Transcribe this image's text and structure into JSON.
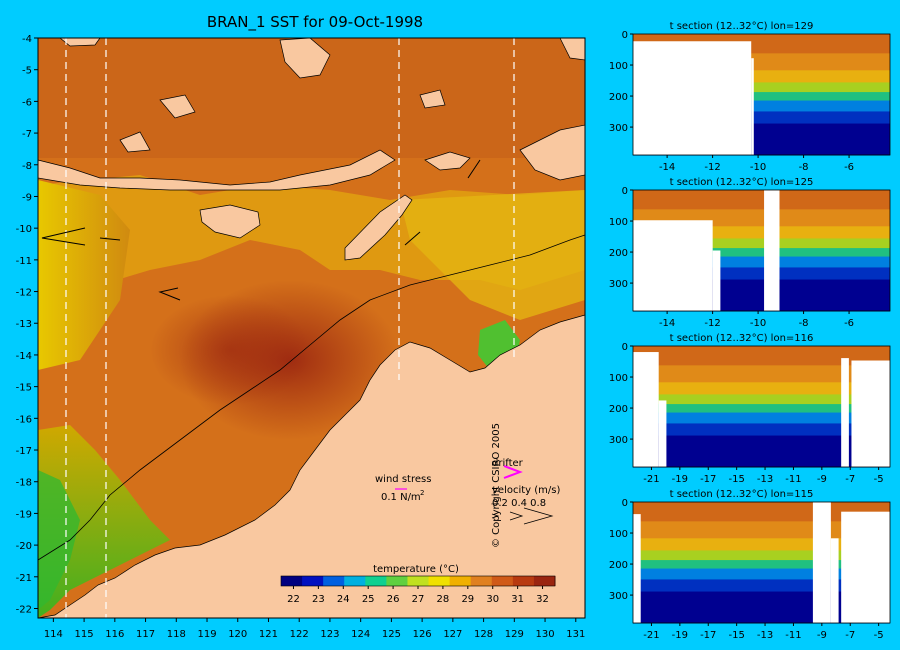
{
  "main_map": {
    "title": "BRAN_1 SST for 09-Oct-1998",
    "lat_ticks": [
      "-4",
      "-5",
      "-6",
      "-7",
      "-8",
      "-9",
      "-10",
      "-11",
      "-12",
      "-13",
      "-14",
      "-15",
      "-16",
      "-17",
      "-18",
      "-19",
      "-20",
      "-21",
      "-22"
    ],
    "lon_ticks": [
      "114",
      "115",
      "116",
      "117",
      "118",
      "119",
      "120",
      "121",
      "122",
      "123",
      "124",
      "125",
      "126",
      "127",
      "128",
      "129",
      "130",
      "131"
    ],
    "wind_stress_label": "wind stress",
    "wind_stress_value": "0.1 N/m",
    "wind_stress_exp": "2",
    "drifter_label": "drifter",
    "velocity_label": "velocity (m/s)",
    "velocity_values": "0.2 0.4 0.8",
    "colorbar_title": "temperature (°C)",
    "colorbar_ticks": [
      "22",
      "23",
      "24",
      "25",
      "26",
      "27",
      "28",
      "29",
      "30",
      "31",
      "32"
    ]
  },
  "copyright": "© Copyright CSIRO 2005",
  "sections": [
    {
      "title": "t section (12..32°C) lon=129",
      "x_ticks": [
        "-14",
        "-12",
        "-10",
        "-8",
        "-6"
      ],
      "y_ticks": [
        "0",
        "100",
        "200",
        "300"
      ]
    },
    {
      "title": "t section (12..32°C) lon=125",
      "x_ticks": [
        "-14",
        "-12",
        "-10",
        "-8",
        "-6"
      ],
      "y_ticks": [
        "0",
        "100",
        "200",
        "300"
      ]
    },
    {
      "title": "t section (12..32°C) lon=116",
      "x_ticks": [
        "-21",
        "-19",
        "-17",
        "-15",
        "-13",
        "-11",
        "-9",
        "-7",
        "-5"
      ],
      "y_ticks": [
        "0",
        "100",
        "200",
        "300"
      ]
    },
    {
      "title": "t section (12..32°C) lon=115",
      "x_ticks": [
        "-21",
        "-19",
        "-17",
        "-15",
        "-13",
        "-11",
        "-9",
        "-7",
        "-5"
      ],
      "y_ticks": [
        "0",
        "100",
        "200",
        "300"
      ]
    }
  ],
  "colors": {
    "background": "#00ccff",
    "land": "#f9c8a0",
    "warm": "#c8501a",
    "hot": "#a52a10",
    "cool": "#e8c800",
    "deep": "#000080"
  },
  "chart_data": [
    {
      "type": "heatmap",
      "title": "BRAN_1 SST for 09-Oct-1998",
      "xlabel": "",
      "ylabel": "",
      "xlim": [
        113.5,
        131.3
      ],
      "ylim": [
        -22.3,
        -4
      ],
      "x_ticks": [
        114,
        115,
        116,
        117,
        118,
        119,
        120,
        121,
        122,
        123,
        124,
        125,
        126,
        127,
        128,
        129,
        130,
        131
      ],
      "y_ticks": [
        -4,
        -5,
        -6,
        -7,
        -8,
        -9,
        -10,
        -11,
        -12,
        -13,
        -14,
        -15,
        -16,
        -17,
        -18,
        -19,
        -20,
        -21,
        -22
      ],
      "colorbar": {
        "label": "temperature (°C)",
        "range": [
          21.5,
          32.5
        ],
        "ticks": [
          22,
          23,
          24,
          25,
          26,
          27,
          28,
          29,
          30,
          31,
          32
        ]
      },
      "section_lines_lon": [
        114.5,
        115.8,
        125.4,
        129.2
      ]
    },
    {
      "type": "heatmap",
      "title": "t section (12..32°C) lon=129",
      "x_ticks": [
        -14,
        -12,
        -10,
        -8,
        -6
      ],
      "y_ticks": [
        0,
        100,
        200,
        300
      ],
      "xlim": [
        -15.5,
        -4.2
      ],
      "ylim": [
        390,
        0
      ]
    },
    {
      "type": "heatmap",
      "title": "t section (12..32°C) lon=125",
      "x_ticks": [
        -14,
        -12,
        -10,
        -8,
        -6
      ],
      "y_ticks": [
        0,
        100,
        200,
        300
      ],
      "xlim": [
        -15.5,
        -4.2
      ],
      "ylim": [
        390,
        0
      ]
    },
    {
      "type": "heatmap",
      "title": "t section (12..32°C) lon=116",
      "x_ticks": [
        -21,
        -19,
        -17,
        -15,
        -13,
        -11,
        -9,
        -7,
        -5
      ],
      "y_ticks": [
        0,
        100,
        200,
        300
      ],
      "xlim": [
        -22.3,
        -4.2
      ],
      "ylim": [
        390,
        0
      ]
    },
    {
      "type": "heatmap",
      "title": "t section (12..32°C) lon=115",
      "x_ticks": [
        -21,
        -19,
        -17,
        -15,
        -13,
        -11,
        -9,
        -7,
        -5
      ],
      "y_ticks": [
        0,
        100,
        200,
        300
      ],
      "xlim": [
        -22.3,
        -4.2
      ],
      "ylim": [
        390,
        0
      ]
    }
  ]
}
